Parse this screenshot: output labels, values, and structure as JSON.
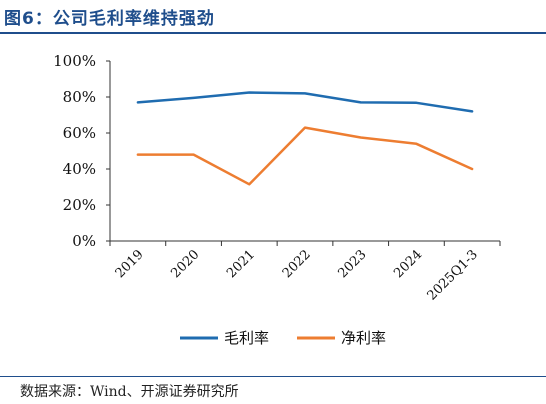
{
  "figure": {
    "title": "图6：公司毛利率维持强劲",
    "source": "数据来源：Wind、开源证券研究所"
  },
  "chart_data": {
    "type": "line",
    "categories": [
      "2019",
      "2020",
      "2021",
      "2022",
      "2023",
      "2024",
      "2025Q1-3"
    ],
    "series": [
      {
        "name": "毛利率",
        "values": [
          77,
          79.5,
          82.5,
          82,
          77,
          76.8,
          72
        ],
        "color": "#1f6cb0"
      },
      {
        "name": "净利率",
        "values": [
          48,
          48,
          31.5,
          63,
          57.5,
          54,
          40
        ],
        "color": "#ed7d31"
      }
    ],
    "ylim": [
      0,
      100
    ],
    "yticks": [
      "0%",
      "20%",
      "40%",
      "60%",
      "80%",
      "100%"
    ],
    "ytick_values": [
      0,
      20,
      40,
      60,
      80,
      100
    ],
    "grid": false,
    "legend": "bottom"
  }
}
